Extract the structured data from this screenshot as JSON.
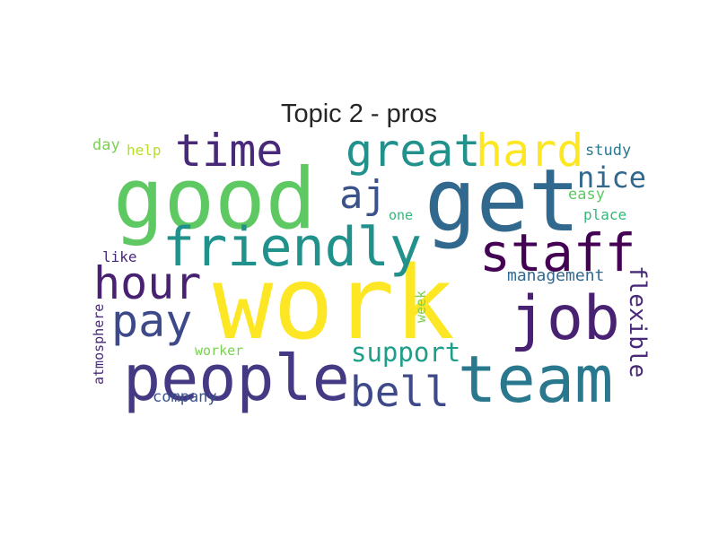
{
  "title": "Topic 2 - pros",
  "words": [
    {
      "text": "work",
      "color": "#fde725",
      "weight": 1.0
    },
    {
      "text": "get",
      "color": "#31688e",
      "weight": 0.82
    },
    {
      "text": "good",
      "color": "#5ec962",
      "weight": 0.8
    },
    {
      "text": "team",
      "color": "#2a788e",
      "weight": 0.62
    },
    {
      "text": "people",
      "color": "#443983",
      "weight": 0.6
    },
    {
      "text": "job",
      "color": "#482173",
      "weight": 0.57
    },
    {
      "text": "friendly",
      "color": "#21918c",
      "weight": 0.52
    },
    {
      "text": "staff",
      "color": "#440154",
      "weight": 0.5
    },
    {
      "text": "great",
      "color": "#21918c",
      "weight": 0.45
    },
    {
      "text": "hard",
      "color": "#fde725",
      "weight": 0.45
    },
    {
      "text": "time",
      "color": "#482878",
      "weight": 0.44
    },
    {
      "text": "pay",
      "color": "#3e4989",
      "weight": 0.44
    },
    {
      "text": "hour",
      "color": "#482173",
      "weight": 0.44
    },
    {
      "text": "bell",
      "color": "#3e4989",
      "weight": 0.42
    },
    {
      "text": "aj",
      "color": "#3b528b",
      "weight": 0.4
    },
    {
      "text": "nice",
      "color": "#31688e",
      "weight": 0.3
    },
    {
      "text": "support",
      "color": "#1f9e89",
      "weight": 0.27
    },
    {
      "text": "flexible",
      "color": "#482878",
      "weight": 0.25
    },
    {
      "text": "management",
      "color": "#31688e",
      "weight": 0.2
    },
    {
      "text": "study",
      "color": "#2a788e",
      "weight": 0.17
    },
    {
      "text": "easy",
      "color": "#5ec962",
      "weight": 0.17
    },
    {
      "text": "place",
      "color": "#35b779",
      "weight": 0.16
    },
    {
      "text": "one",
      "color": "#35b779",
      "weight": 0.15
    },
    {
      "text": "day",
      "color": "#7ad151",
      "weight": 0.17
    },
    {
      "text": "help",
      "color": "#b5de2b",
      "weight": 0.16
    },
    {
      "text": "like",
      "color": "#482878",
      "weight": 0.16
    },
    {
      "text": "atmosphere",
      "color": "#482878",
      "weight": 0.15
    },
    {
      "text": "week",
      "color": "#7ad151",
      "weight": 0.15
    },
    {
      "text": "worker",
      "color": "#7ad151",
      "weight": 0.15
    },
    {
      "text": "company",
      "color": "#3b528b",
      "weight": 0.16
    }
  ]
}
